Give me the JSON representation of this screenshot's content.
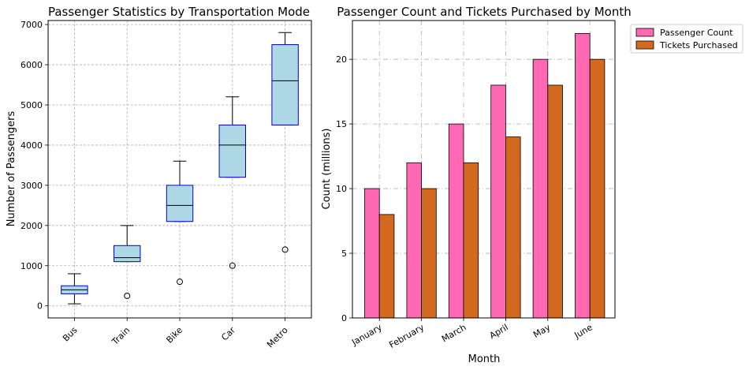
{
  "chart_data": [
    {
      "type": "box",
      "title": "Passenger Statistics by Transportation Mode",
      "xlabel": "",
      "ylabel": "Number of Passengers",
      "ylim": [
        -300,
        7100
      ],
      "yticks": [
        0,
        1000,
        2000,
        3000,
        4000,
        5000,
        6000,
        7000
      ],
      "grid": true,
      "categories": [
        "Bus",
        "Train",
        "Bike",
        "Car",
        "Metro"
      ],
      "boxes": [
        {
          "label": "Bus",
          "whisker_low": 50,
          "q1": 300,
          "median": 400,
          "q3": 500,
          "whisker_high": 800,
          "outliers": []
        },
        {
          "label": "Train",
          "whisker_low": 1100,
          "q1": 1100,
          "median": 1200,
          "q3": 1500,
          "whisker_high": 2000,
          "outliers": [
            250
          ]
        },
        {
          "label": "Bike",
          "whisker_low": 2100,
          "q1": 2100,
          "median": 2500,
          "q3": 3000,
          "whisker_high": 3600,
          "outliers": [
            600
          ]
        },
        {
          "label": "Car",
          "whisker_low": 3200,
          "q1": 3200,
          "median": 4000,
          "q3": 4500,
          "whisker_high": 5200,
          "outliers": [
            1000
          ]
        },
        {
          "label": "Metro",
          "whisker_low": 4500,
          "q1": 4500,
          "median": 5600,
          "q3": 6500,
          "whisker_high": 6800,
          "outliers": [
            1400
          ]
        }
      ],
      "box_fill": "#add8e6",
      "box_edge": "#0000cd"
    },
    {
      "type": "bar",
      "title": "Passenger Count and Tickets Purchased by Month",
      "xlabel": "Month",
      "ylabel": "Count (millions)",
      "ylim": [
        0,
        23
      ],
      "yticks": [
        0,
        5,
        10,
        15,
        20
      ],
      "grid": true,
      "categories": [
        "January",
        "February",
        "March",
        "April",
        "May",
        "June"
      ],
      "series": [
        {
          "name": "Passenger Count",
          "values": [
            10,
            12,
            15,
            18,
            20,
            22
          ],
          "color": "#ff69b4"
        },
        {
          "name": "Tickets Purchased",
          "values": [
            8,
            10,
            12,
            14,
            18,
            20
          ],
          "color": "#d2691e"
        }
      ],
      "legend": "upper-right-outside"
    }
  ]
}
